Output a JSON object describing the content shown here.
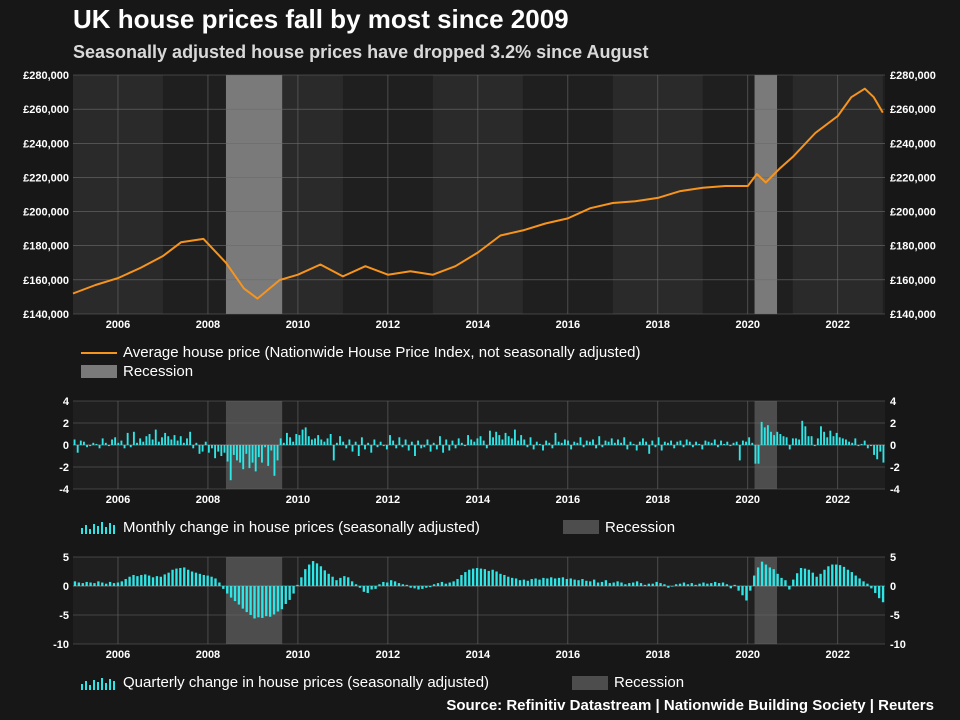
{
  "title": "UK house prices fall by most since 2009",
  "subtitle": "Seasonally adjusted house prices have dropped 3.2% since August",
  "source": "Source: Refinitiv Datastream | Nationwide Building Society | Reuters",
  "colors": {
    "background": "#171717",
    "price_line": "#f7941d",
    "bars": "#2ee6e6",
    "recession_top": "#7a7a7a",
    "recession_bottom": "#4d4d4d",
    "grid": "#6a6a6a"
  },
  "chart_data": [
    {
      "type": "line",
      "x_ticks": [
        "2006",
        "2008",
        "2010",
        "2012",
        "2014",
        "2016",
        "2018",
        "2020",
        "2022"
      ],
      "y_ticks": [
        "£140,000",
        "£160,000",
        "£180,000",
        "£200,000",
        "£220,000",
        "£240,000",
        "£260,000",
        "£280,000"
      ],
      "ylim": [
        140000,
        280000
      ],
      "xlim": [
        2005.0,
        2023.05
      ],
      "grid": true,
      "legend_position": "bottom-left",
      "recessions": [
        [
          2008.4,
          2009.65
        ],
        [
          2020.15,
          2020.65
        ]
      ],
      "series": [
        {
          "name": "Average house price (Nationwide House Price Index, not seasonally adjusted)",
          "x": [
            2005.0,
            2005.5,
            2006.0,
            2006.5,
            2007.0,
            2007.4,
            2007.9,
            2008.4,
            2008.8,
            2009.1,
            2009.6,
            2010.0,
            2010.5,
            2011.0,
            2011.5,
            2012.0,
            2012.5,
            2013.0,
            2013.5,
            2014.0,
            2014.5,
            2015.0,
            2015.5,
            2016.0,
            2016.5,
            2017.0,
            2017.5,
            2018.0,
            2018.5,
            2019.0,
            2019.5,
            2020.0,
            2020.2,
            2020.4,
            2020.7,
            2021.0,
            2021.5,
            2022.0,
            2022.3,
            2022.6,
            2022.8,
            2023.0
          ],
          "values": [
            152000,
            157000,
            161000,
            167000,
            174000,
            182000,
            184000,
            170000,
            155000,
            149000,
            160000,
            163000,
            169000,
            162000,
            168000,
            163000,
            165000,
            163000,
            168000,
            176000,
            186000,
            189000,
            193000,
            196000,
            202000,
            205000,
            206000,
            208000,
            212000,
            214000,
            215000,
            215000,
            222000,
            217000,
            225000,
            232000,
            246000,
            256000,
            267000,
            272000,
            267000,
            258000
          ]
        }
      ]
    },
    {
      "type": "bar",
      "x_ticks": [
        "2006",
        "2008",
        "2010",
        "2012",
        "2014",
        "2016",
        "2018",
        "2020",
        "2022"
      ],
      "y_ticks": [
        "-4",
        "-2",
        "0",
        "2",
        "4"
      ],
      "ylim": [
        -4,
        4
      ],
      "xlim": [
        2005.0,
        2023.05
      ],
      "grid": true,
      "legend_position": "bottom-left",
      "recessions": [
        [
          2008.4,
          2009.65
        ],
        [
          2020.15,
          2020.65
        ]
      ],
      "series": [
        {
          "name": "Monthly change in house prices (seasonally adjusted)",
          "values": [
            0.5,
            -0.7,
            0.4,
            0.3,
            -0.2,
            -0.1,
            0.2,
            0.1,
            -0.3,
            0.6,
            0.2,
            -0.1,
            0.5,
            0.7,
            0.2,
            0.4,
            -0.3,
            1.1,
            -0.2,
            1.2,
            0.2,
            0.6,
            0.3,
            0.8,
            1.0,
            0.5,
            1.4,
            0.3,
            0.7,
            1.1,
            0.8,
            0.5,
            0.9,
            0.4,
            0.8,
            0.2,
            0.6,
            1.2,
            -0.3,
            0.2,
            -0.8,
            -0.6,
            0.3,
            -0.7,
            -0.3,
            -1.2,
            -0.6,
            -1.0,
            -0.7,
            -1.5,
            -3.2,
            -0.9,
            -1.4,
            -1.6,
            -2.2,
            -0.8,
            -2.1,
            -1.6,
            -2.4,
            -1.1,
            -1.6,
            -0.2,
            -1.9,
            -0.5,
            -2.8,
            -1.4,
            0.6,
            0.2,
            1.1,
            0.7,
            0.3,
            1.0,
            0.9,
            1.4,
            1.6,
            0.8,
            0.5,
            0.6,
            0.9,
            0.5,
            0.3,
            0.6,
            1.0,
            -1.4,
            0.2,
            0.8,
            0.3,
            -0.3,
            0.5,
            -0.6,
            0.3,
            -1.0,
            0.7,
            -0.4,
            0.2,
            -0.7,
            0.5,
            -0.2,
            0.3,
            -0.1,
            -0.4,
            0.9,
            0.4,
            -0.3,
            0.7,
            -0.2,
            0.5,
            -0.5,
            0.3,
            -1.0,
            0.4,
            -0.3,
            -0.2,
            0.5,
            -0.6,
            0.2,
            -0.4,
            0.8,
            -0.7,
            0.5,
            -0.5,
            0.4,
            -0.3,
            0.6,
            0.2,
            -0.1,
            0.9,
            0.5,
            0.3,
            0.6,
            0.8,
            0.4,
            -0.3,
            1.3,
            0.7,
            1.2,
            0.9,
            0.5,
            1.1,
            0.8,
            0.6,
            1.4,
            0.4,
            0.9,
            0.5,
            -0.2,
            0.7,
            -0.4,
            0.3,
            0.1,
            -0.5,
            0.4,
            0.2,
            -0.3,
            1.1,
            0.3,
            0.2,
            0.5,
            0.4,
            -0.4,
            0.3,
            0.2,
            0.7,
            -0.2,
            0.4,
            0.3,
            0.5,
            -0.3,
            0.8,
            -0.2,
            0.4,
            0.3,
            0.6,
            0.2,
            0.5,
            0.2,
            0.7,
            -0.4,
            0.3,
            0.1,
            -0.5,
            0.3,
            0.6,
            0.3,
            -0.8,
            0.4,
            -0.2,
            0.7,
            -0.5,
            0.3,
            0.2,
            0.4,
            -0.3,
            0.3,
            0.4,
            -0.2,
            0.5,
            0.3,
            -0.2,
            0.3,
            0.1,
            -0.4,
            0.4,
            0.3,
            0.2,
            0.5,
            -0.2,
            0.4,
            0.1,
            0.3,
            -0.1,
            0.2,
            0.3,
            -1.4,
            0.4,
            0.3,
            0.7,
            0.2,
            -1.7,
            -1.7,
            2.1,
            1.6,
            1.8,
            1.2,
            0.9,
            1.2,
            1.0,
            0.8,
            0.7,
            -0.4,
            0.6,
            0.6,
            0.5,
            2.2,
            1.7,
            0.8,
            0.8,
            -0.1,
            0.6,
            1.7,
            1.2,
            0.7,
            1.3,
            0.8,
            1.1,
            0.7,
            0.6,
            0.5,
            0.3,
            0.2,
            0.6,
            -0.1,
            0.1,
            0.4,
            -0.3,
            -0.1,
            -0.9,
            -1.3,
            -0.6,
            -1.6
          ]
        }
      ]
    },
    {
      "type": "bar",
      "x_ticks": [
        "2006",
        "2008",
        "2010",
        "2012",
        "2014",
        "2016",
        "2018",
        "2020",
        "2022"
      ],
      "y_ticks": [
        "-10",
        "-5",
        "0",
        "5"
      ],
      "ylim": [
        -10,
        5
      ],
      "xlim": [
        2005.0,
        2023.05
      ],
      "grid": true,
      "legend_position": "bottom-left",
      "recessions": [
        [
          2008.4,
          2009.65
        ],
        [
          2020.15,
          2020.65
        ]
      ],
      "series": [
        {
          "name": "Quarterly change in house prices (seasonally adjusted)",
          "values": [
            0.8,
            0.6,
            0.5,
            0.7,
            0.6,
            0.5,
            0.8,
            0.6,
            0.4,
            0.7,
            0.5,
            0.6,
            0.8,
            1.2,
            1.6,
            1.9,
            1.7,
            1.9,
            2.0,
            1.8,
            1.5,
            1.7,
            1.6,
            2.0,
            2.3,
            2.8,
            3.0,
            3.1,
            3.2,
            2.8,
            2.5,
            2.3,
            2.1,
            1.9,
            1.8,
            1.6,
            1.3,
            0.6,
            -0.5,
            -1.3,
            -2.0,
            -2.6,
            -3.2,
            -3.9,
            -4.5,
            -5.0,
            -5.6,
            -5.4,
            -5.5,
            -5.2,
            -5.3,
            -4.9,
            -4.4,
            -4.0,
            -3.1,
            -2.4,
            -1.3,
            0.2,
            1.5,
            2.9,
            3.7,
            4.3,
            3.9,
            3.4,
            2.7,
            2.1,
            1.6,
            1.0,
            1.4,
            1.7,
            1.5,
            0.8,
            0.3,
            -0.3,
            -1.0,
            -1.2,
            -0.6,
            -0.5,
            0.3,
            0.7,
            0.6,
            1.0,
            0.8,
            0.5,
            0.3,
            0.2,
            -0.3,
            -0.4,
            -0.6,
            -0.5,
            -0.3,
            -0.2,
            0.3,
            0.5,
            0.7,
            0.4,
            0.6,
            0.8,
            1.2,
            1.9,
            2.4,
            2.8,
            3.0,
            3.1,
            3.0,
            2.9,
            2.6,
            2.8,
            2.5,
            2.1,
            1.9,
            1.6,
            1.4,
            1.3,
            1.0,
            1.1,
            0.9,
            1.2,
            1.3,
            1.1,
            1.4,
            1.3,
            1.5,
            1.3,
            1.4,
            1.5,
            1.2,
            1.3,
            1.1,
            1.0,
            1.2,
            0.9,
            0.8,
            1.1,
            0.6,
            0.7,
            1.0,
            0.5,
            0.6,
            0.8,
            0.6,
            0.3,
            0.5,
            0.6,
            0.8,
            0.5,
            0.2,
            0.4,
            0.4,
            0.7,
            0.5,
            0.3,
            -0.3,
            -0.1,
            0.3,
            0.4,
            0.6,
            0.3,
            0.5,
            0.2,
            0.4,
            0.6,
            0.4,
            0.5,
            0.7,
            0.5,
            0.6,
            0.3,
            -0.4,
            0.2,
            -0.8,
            -1.6,
            -2.5,
            -0.8,
            1.8,
            3.2,
            4.2,
            3.7,
            3.2,
            2.9,
            2.1,
            1.4,
            1.0,
            -0.6,
            1.1,
            2.2,
            3.1,
            3.0,
            2.8,
            2.3,
            1.6,
            2.1,
            2.8,
            3.4,
            3.7,
            3.7,
            3.6,
            3.3,
            2.8,
            2.4,
            1.8,
            1.3,
            0.8,
            0.4,
            -0.4,
            -1.2,
            -2.1,
            -2.8
          ]
        }
      ]
    }
  ],
  "legend": {
    "price": "Average house price (Nationwide House Price Index, not seasonally adjusted)",
    "recession": "Recession",
    "monthly": "Monthly change in house prices (seasonally adjusted)",
    "quarterly": "Quarterly change in house prices (seasonally adjusted)"
  }
}
